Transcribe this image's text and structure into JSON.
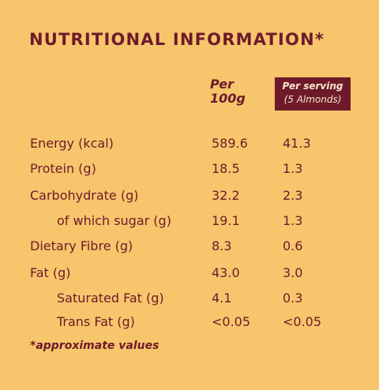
{
  "title": "NUTRITIONAL INFORMATION*",
  "table": {
    "header": [
      "Per 100g",
      "Per serving",
      "(5 Almonds)"
    ],
    "rows": [
      [
        "Energy (kcal)",
        "589.6",
        "41.3"
      ],
      [
        "Protein (g)",
        "18.5",
        "1.3"
      ],
      [
        "Carbohydrate (g)",
        "32.2",
        "2.3"
      ],
      [
        "of which sugar (g)",
        "19.1",
        "1.3"
      ],
      [
        "Dietary Fibre (g)",
        "8.3",
        "0.6"
      ],
      [
        "Fat (g)",
        "43.0",
        "3.0"
      ],
      [
        "Saturated Fat (g)",
        "4.1",
        "0.3"
      ],
      [
        "Trans Fat (g)",
        "<0.05",
        "<0.05"
      ]
    ]
  },
  "footnote": "*approximate values"
}
